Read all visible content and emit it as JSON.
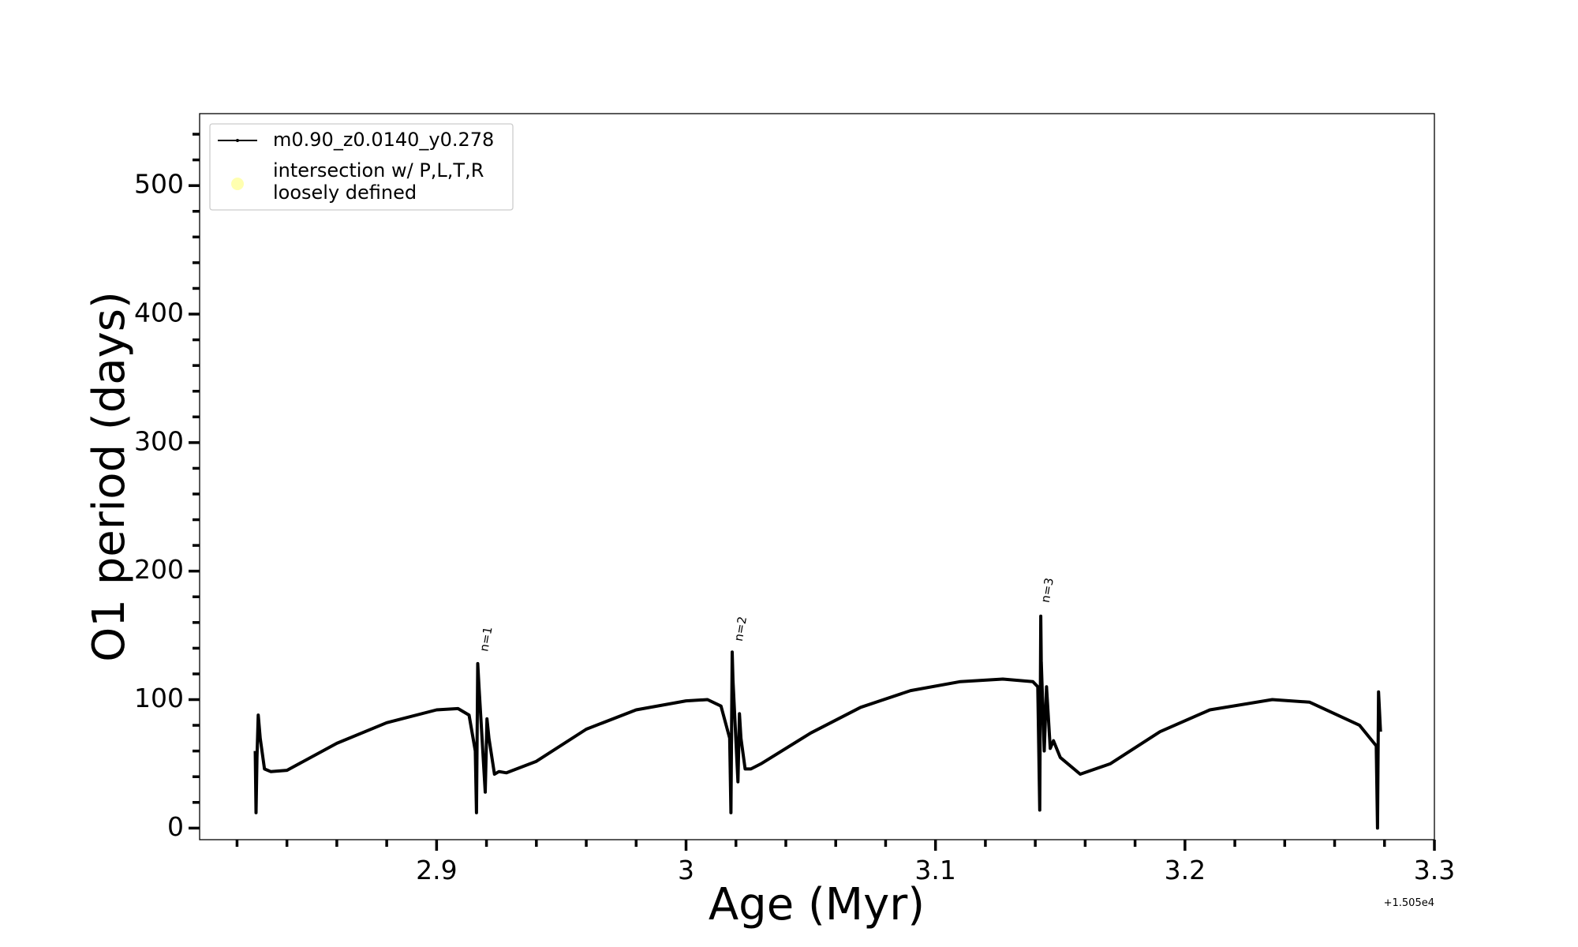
{
  "chart_data": {
    "type": "line",
    "xlabel": "Age (Myr)",
    "ylabel": "O1 period (days)",
    "x_offset_label": "+1.505e4",
    "xlim": [
      2.805,
      3.3
    ],
    "ylim": [
      -9,
      556
    ],
    "xticks": [
      2.9,
      3.0,
      3.1,
      3.2,
      3.3
    ],
    "yticks": [
      0,
      100,
      200,
      300,
      400,
      500
    ],
    "xminor_ticks": [
      2.82,
      2.84,
      2.86,
      2.88,
      2.92,
      2.94,
      2.96,
      2.98,
      3.02,
      3.04,
      3.06,
      3.08,
      3.12,
      3.14,
      3.16,
      3.18,
      3.22,
      3.24,
      3.26,
      3.28
    ],
    "yminor_ticks": [
      20,
      40,
      60,
      80,
      120,
      140,
      160,
      180,
      220,
      240,
      260,
      280,
      320,
      340,
      360,
      380,
      420,
      440,
      460,
      480,
      520,
      540
    ],
    "legend": "upper left",
    "legend_extra": {
      "label_lines": [
        "intersection w/ P,L,T,R",
        "loosely defined"
      ],
      "color": "#ffffb0"
    },
    "annotations": [
      {
        "text": "n=1",
        "x": 2.9205,
        "y": 137
      },
      {
        "text": "n=2",
        "x": 3.0225,
        "y": 145
      },
      {
        "text": "n=3",
        "x": 3.1455,
        "y": 175
      }
    ],
    "series": [
      {
        "name": "m0.90_z0.0140_y0.278",
        "color": "#000000",
        "x": [
          2.8273,
          2.8276,
          2.828,
          2.8285,
          2.8293,
          2.831,
          2.8335,
          2.84,
          2.86,
          2.88,
          2.9,
          2.9086,
          2.913,
          2.9155,
          2.916,
          2.9165,
          2.917,
          2.9195,
          2.9202,
          2.921,
          2.9232,
          2.925,
          2.928,
          2.94,
          2.96,
          2.98,
          3.0,
          3.0086,
          3.014,
          3.0175,
          3.018,
          3.0185,
          3.0188,
          3.0208,
          3.0214,
          3.022,
          3.0237,
          3.026,
          3.03,
          3.05,
          3.07,
          3.09,
          3.11,
          3.127,
          3.139,
          3.141,
          3.1418,
          3.1422,
          3.1424,
          3.1436,
          3.1445,
          3.146,
          3.1473,
          3.15,
          3.158,
          3.17,
          3.19,
          3.21,
          3.235,
          3.25,
          3.27,
          3.2767,
          3.2772,
          3.2776,
          3.2784
        ],
        "values": [
          60,
          12,
          55,
          88,
          70,
          46,
          44,
          45,
          66,
          82,
          92,
          93,
          88,
          60,
          12,
          128,
          110,
          28,
          85,
          70,
          42,
          44,
          43,
          52,
          77,
          92,
          99,
          100,
          95,
          70,
          12,
          137,
          115,
          36,
          89,
          70,
          46,
          46,
          50,
          74,
          94,
          107,
          114,
          116,
          114,
          110,
          14,
          165,
          130,
          60,
          110,
          62,
          68,
          55,
          42,
          50,
          75,
          92,
          100,
          98,
          80,
          64,
          0,
          106,
          75
        ]
      }
    ]
  }
}
